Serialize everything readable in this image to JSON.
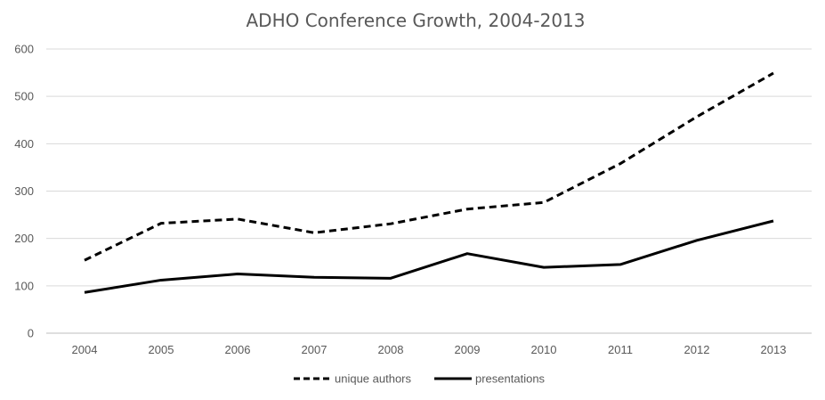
{
  "chart_data": {
    "type": "line",
    "title": "ADHO Conference Growth, 2004-2013",
    "x": [
      "2004",
      "2005",
      "2006",
      "2007",
      "2008",
      "2009",
      "2010",
      "2011",
      "2012",
      "2013"
    ],
    "ylim": [
      0,
      600
    ],
    "yticks": [
      "0",
      "100",
      "200",
      "300",
      "400",
      "500",
      "600"
    ],
    "grid": true,
    "legend_position": "bottom",
    "series": [
      {
        "name": "unique authors",
        "style": "dashed",
        "color": "#000000",
        "values": [
          154,
          232,
          241,
          212,
          231,
          262,
          276,
          358,
          457,
          549
        ]
      },
      {
        "name": "presentations",
        "style": "solid",
        "color": "#000000",
        "values": [
          86,
          112,
          125,
          118,
          116,
          168,
          139,
          145,
          196,
          237
        ]
      }
    ]
  }
}
